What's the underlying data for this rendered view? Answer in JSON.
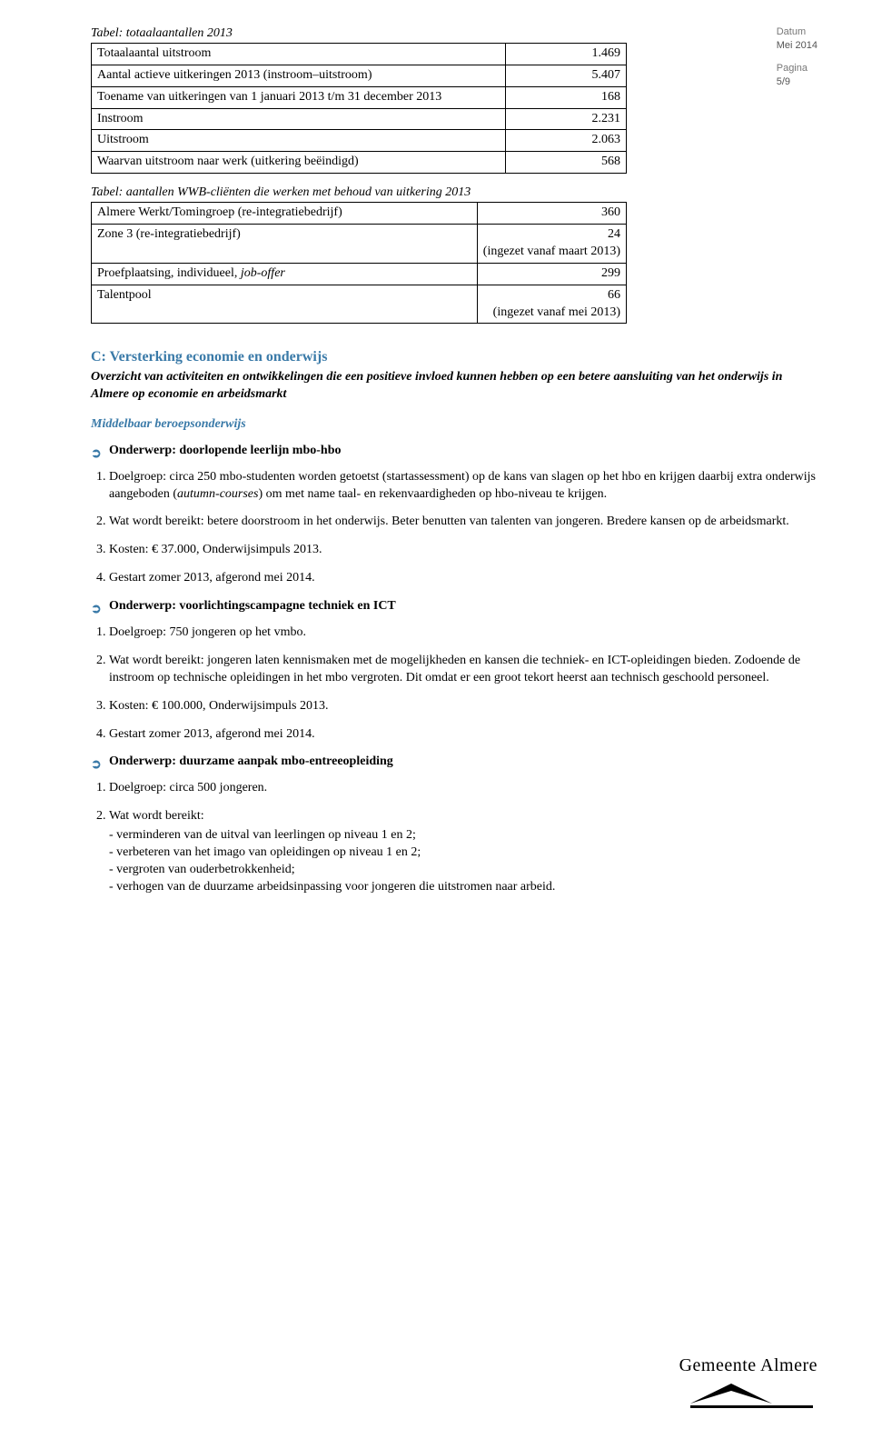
{
  "header": {
    "date_label": "Datum",
    "date_value": "Mei 2014",
    "page_label": "Pagina",
    "page_value": "5/9"
  },
  "table1": {
    "title": "Tabel: totaalaantallen 2013",
    "rows": [
      {
        "label": "Totaalaantal uitstroom",
        "value": "1.469"
      },
      {
        "label": "Aantal actieve uitkeringen 2013 (instroom–uitstroom)",
        "value": "5.407"
      },
      {
        "label": "Toename van uitkeringen van 1 januari 2013 t/m 31 december 2013",
        "value": "168"
      },
      {
        "label": "Instroom",
        "value": "2.231"
      },
      {
        "label": "Uitstroom",
        "value": "2.063"
      },
      {
        "label": "Waarvan uitstroom naar werk (uitkering beëindigd)",
        "value": "568"
      }
    ]
  },
  "table2": {
    "title": "Tabel: aantallen WWB-cliënten die werken met behoud van uitkering 2013",
    "rows": [
      {
        "label": "Almere Werkt/Tomingroep (re-integratiebedrijf)",
        "value": "360"
      },
      {
        "label": "Zone 3  (re-integratiebedrijf)",
        "value": "24\n(ingezet vanaf maart 2013)"
      },
      {
        "label_html": "Proefplaatsing, individueel, <span class=\"em\">job-offer</span>",
        "value": "299"
      },
      {
        "label": "Talentpool",
        "value": "66\n(ingezet vanaf mei 2013)"
      }
    ]
  },
  "sectionC": {
    "title": "C: Versterking economie en onderwijs",
    "subtitle": "Overzicht van activiteiten en ontwikkelingen die een positieve invloed kunnen hebben op een betere aansluiting van het onderwijs in Almere op economie en arbeidsmarkt",
    "mbo_label": "Middelbaar beroepsonderwijs",
    "topics": [
      {
        "heading": "Onderwerp: doorlopende leerlijn mbo-hbo",
        "items": [
          "Doelgroep: circa 250 mbo-studenten worden getoetst (startassessment) op de kans van slagen op het hbo en krijgen daarbij extra onderwijs aangeboden (<span class=\"em\">autumn-courses</span>) om met name taal- en rekenvaardigheden op hbo-niveau te krijgen.",
          "Wat wordt bereikt: betere doorstroom in het onderwijs. Beter benutten van talenten van jongeren. Bredere kansen op de arbeidsmarkt.",
          "Kosten: € 37.000, Onderwijsimpuls 2013.",
          "Gestart zomer 2013, afgerond mei 2014."
        ]
      },
      {
        "heading": "Onderwerp: voorlichtingscampagne techniek en ICT",
        "items": [
          "Doelgroep: 750 jongeren op het vmbo.",
          "Wat wordt bereikt: jongeren laten kennismaken met de mogelijkheden en kansen die techniek- en ICT-opleidingen bieden. Zodoende de instroom op technische opleidingen in het mbo vergroten. Dit omdat er een groot tekort heerst aan technisch geschoold personeel.",
          "Kosten: € 100.000, Onderwijsimpuls 2013.",
          "Gestart zomer 2013, afgerond mei 2014."
        ]
      },
      {
        "heading": "Onderwerp: duurzame aanpak mbo-entreeopleiding",
        "items": [
          "Doelgroep: circa 500 jongeren.",
          "Wat wordt bereikt:"
        ],
        "sublist": [
          "verminderen van de uitval van leerlingen op niveau 1 en 2;",
          "verbeteren van het imago van opleidingen op niveau 1 en 2;",
          "vergroten van ouderbetrokkenheid;",
          "verhogen van de duurzame arbeidsinpassing voor jongeren die uitstromen naar arbeid."
        ]
      }
    ]
  },
  "logo_text": "Gemeente Almere"
}
